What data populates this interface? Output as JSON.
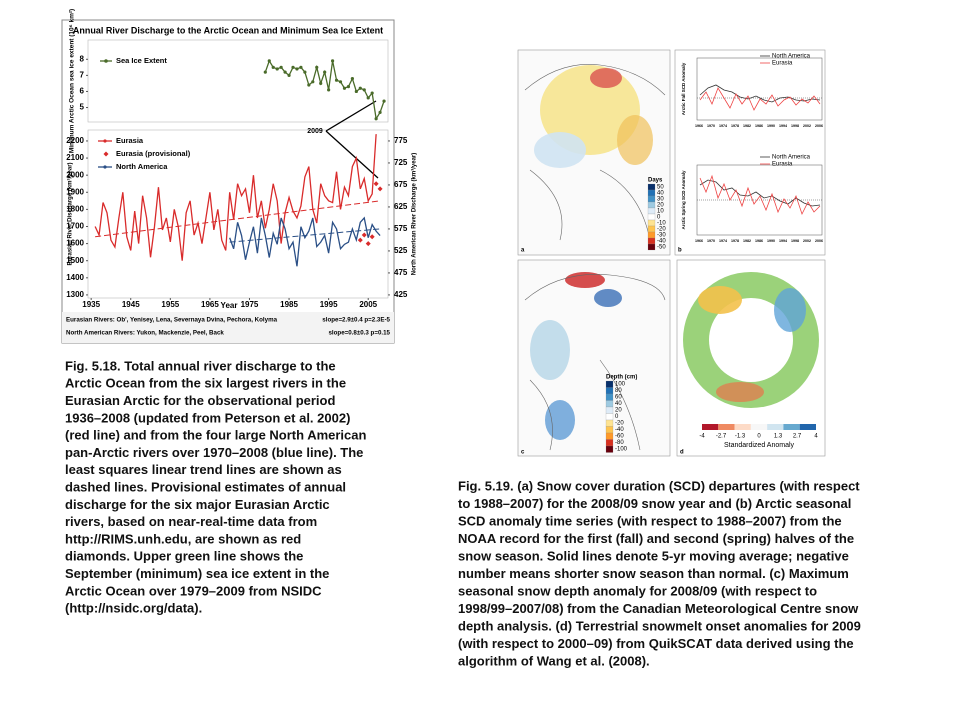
{
  "chart_data": [
    {
      "type": "line",
      "title": "Annual River Discharge to the Arctic Ocean and Minimum Sea Ice Extent",
      "ylabel": "Minimum Arctic Ocean sea ice extent (10⁶ km²)",
      "xlim": [
        1934.2,
        2010
      ],
      "ylim": [
        4.1,
        9.2
      ],
      "yticks": [
        5,
        6,
        7,
        8
      ],
      "series": [
        {
          "name": "Sea Ice Extent",
          "color": "#4a6b2a",
          "x": [
            1979,
            1980,
            1981,
            1982,
            1983,
            1984,
            1985,
            1986,
            1987,
            1988,
            1989,
            1990,
            1991,
            1992,
            1993,
            1994,
            1995,
            1996,
            1997,
            1998,
            1999,
            2000,
            2001,
            2002,
            2003,
            2004,
            2005,
            2006,
            2007,
            2008,
            2009
          ],
          "values": [
            7.2,
            7.9,
            7.5,
            7.4,
            7.5,
            7.2,
            7.0,
            7.5,
            7.4,
            7.5,
            7.2,
            6.4,
            6.6,
            7.5,
            6.5,
            7.2,
            6.1,
            7.9,
            6.7,
            6.6,
            6.2,
            6.3,
            6.8,
            6.0,
            6.2,
            6.1,
            5.6,
            5.9,
            4.3,
            4.7,
            5.4
          ]
        }
      ]
    },
    {
      "type": "line",
      "xlabel": "Year",
      "ylabel": "Eurasian River Discharge (km³/year)",
      "y2label": "North American River Discharge (km³/year)",
      "annotation": "2009",
      "xlim": [
        1934.2,
        2010
      ],
      "xticks": [
        1935,
        1945,
        1955,
        1965,
        1975,
        1985,
        1995,
        2005
      ],
      "ylim": [
        1282,
        2264
      ],
      "yticks": [
        1300,
        1400,
        1500,
        1600,
        1700,
        1800,
        1900,
        2000,
        2100,
        2200
      ],
      "y2lim": [
        418,
        799.9
      ],
      "y2ticks": [
        425,
        475,
        525,
        575,
        625,
        675,
        725,
        775
      ],
      "series": [
        {
          "name": "Eurasia",
          "color": "#d92b2b",
          "x": [
            1936,
            1937,
            1938,
            1939,
            1940,
            1941,
            1942,
            1943,
            1944,
            1945,
            1946,
            1947,
            1948,
            1949,
            1950,
            1951,
            1952,
            1953,
            1954,
            1955,
            1956,
            1957,
            1958,
            1959,
            1960,
            1961,
            1962,
            1963,
            1964,
            1965,
            1966,
            1967,
            1968,
            1969,
            1970,
            1971,
            1972,
            1973,
            1974,
            1975,
            1976,
            1977,
            1978,
            1979,
            1980,
            1981,
            1982,
            1983,
            1984,
            1985,
            1986,
            1987,
            1988,
            1989,
            1990,
            1991,
            1992,
            1993,
            1994,
            1995,
            1996,
            1997,
            1998,
            1999,
            2000,
            2001,
            2002,
            2003,
            2004,
            2005,
            2006,
            2007
          ],
          "values": [
            1700,
            1650,
            1840,
            1780,
            1620,
            1580,
            1750,
            1900,
            1640,
            1560,
            1790,
            1600,
            1880,
            1750,
            1520,
            1700,
            1930,
            1680,
            1750,
            1610,
            1800,
            1700,
            1500,
            1780,
            1850,
            1650,
            1720,
            1600,
            1750,
            1900,
            1680,
            1800,
            1620,
            1560,
            1900,
            1740,
            1950,
            1880,
            1920,
            1780,
            2000,
            1750,
            1850,
            1690,
            1800,
            1950,
            1850,
            1600,
            1780,
            1870,
            1790,
            1750,
            1820,
            1990,
            2050,
            1800,
            1720,
            1950,
            1880,
            1850,
            1840,
            2020,
            1800,
            1930,
            1880,
            2050,
            2100,
            1920,
            1980,
            1850,
            1890,
            2240
          ]
        },
        {
          "name": "Eurasia (provisional)",
          "color": "#d92b2b",
          "marker": "diamond",
          "x": [
            2003,
            2004,
            2005,
            2006,
            2007,
            2008
          ],
          "values": [
            1620,
            1650,
            1600,
            1640,
            1950,
            1920
          ]
        },
        {
          "name": "North America",
          "color": "#2a4f86",
          "axis": "y2",
          "x": [
            1970,
            1971,
            1972,
            1973,
            1974,
            1975,
            1976,
            1977,
            1978,
            1979,
            1980,
            1981,
            1982,
            1983,
            1984,
            1985,
            1986,
            1987,
            1988,
            1989,
            1990,
            1991,
            1992,
            1993,
            1994,
            1995,
            1996,
            1997,
            1998,
            1999,
            2000,
            2001,
            2002,
            2003,
            2004,
            2005,
            2006,
            2007,
            2008
          ],
          "values": [
            555,
            530,
            590,
            560,
            505,
            545,
            580,
            520,
            600,
            560,
            510,
            565,
            540,
            600,
            575,
            530,
            545,
            490,
            580,
            555,
            570,
            600,
            535,
            545,
            560,
            520,
            590,
            575,
            530,
            540,
            545,
            575,
            550,
            590,
            600,
            555,
            585,
            570,
            560
          ]
        }
      ],
      "trend_lines": [
        {
          "color": "#d92b2b",
          "x": [
            1936,
            2008
          ],
          "values": [
            1640,
            1850
          ]
        },
        {
          "color": "#2a4f86",
          "axis": "y2",
          "x": [
            1970,
            2008
          ],
          "values": [
            545,
            575
          ]
        }
      ],
      "notes": [
        {
          "text": "Eurasian Rivers: Ob', Yenisey, Lena, Severnaya Dvina, Pechora, Kolyma",
          "color": "#c0282a"
        },
        {
          "text": "slope=2.9±0.4  p=2.3E-5",
          "color": "#c0282a"
        },
        {
          "text": "North American Rivers: Yukon, Mackenzie, Peel, Back",
          "color": "#2a4f86"
        },
        {
          "text": "slope=0.8±0.3  p=0.15",
          "color": "#2a4f86"
        }
      ]
    }
  ],
  "figure_right": {
    "panels": [
      "a",
      "b",
      "c",
      "d"
    ],
    "days": {
      "title": "Days",
      "ticks": [
        "50",
        "40",
        "30",
        "20",
        "10",
        "0",
        "-10",
        "-20",
        "-30",
        "-40",
        "-50"
      ]
    },
    "depth": {
      "title": "Depth (cm)",
      "ticks": [
        "100",
        "80",
        "60",
        "40",
        "20",
        "0",
        "-20",
        "-40",
        "-60",
        "-80",
        "-100"
      ]
    },
    "anomaly": {
      "title": "Standardized Anomaly",
      "ticks": [
        "-4",
        "-2.7",
        "-1.3",
        "0",
        "1.3",
        "2.7",
        "4"
      ]
    },
    "timeseries": {
      "legend": [
        "North America",
        "Eurasia"
      ],
      "ylabels": [
        "Arctic Fall SCD Anomaly",
        "Arctic Spring SCD Anomaly"
      ],
      "xticks": [
        1966,
        1970,
        1974,
        1978,
        1982,
        1986,
        1990,
        1994,
        1998,
        2002,
        2006
      ]
    }
  },
  "captions": [
    [
      "Fig. 5.18. Total annual river discharge to the",
      "Arctic Ocean from the six largest rivers in the",
      "Eurasian Arctic for the observational period",
      "1936–2008 (updated from Peterson et al. 2002)",
      "(red line) and from the four large North American",
      "pan-Arctic rivers over 1970–2008 (blue line). The",
      "least squares linear trend lines are shown as",
      "dashed lines. Provisional estimates of annual",
      "discharge for the six major Eurasian Arctic",
      "rivers, based on near-real-time data from",
      "http://RIMS.unh.edu, are shown as red",
      "diamonds. Upper green line shows the",
      "September (minimum) sea ice extent in the",
      "Arctic Ocean over 1979–2009 from NSIDC",
      "(http://nsidc.org/data)."
    ],
    [
      "Fig. 5.19. (a) Snow cover duration (SCD) departures (with respect",
      "to 1988–2007) for the 2008/09 snow year and (b) Arctic seasonal",
      "SCD anomaly time series (with respect to 1988–2007) from the",
      "NOAA record for the first (fall) and second (spring) halves of the",
      "snow season. Solid lines denote 5-yr moving average; negative",
      "number means shorter snow season than normal. (c) Maximum",
      "seasonal snow depth anomaly for 2008/09 (with respect to",
      "1998/99–2007/08) from the Canadian Meteorological Centre snow",
      "depth analysis. (d) Terrestrial snowmelt onset anomalies for 2009",
      "(with respect to 2000–09) from QuikSCAT data derived using the",
      "algorithm of Wang et al. (2008)."
    ]
  ]
}
